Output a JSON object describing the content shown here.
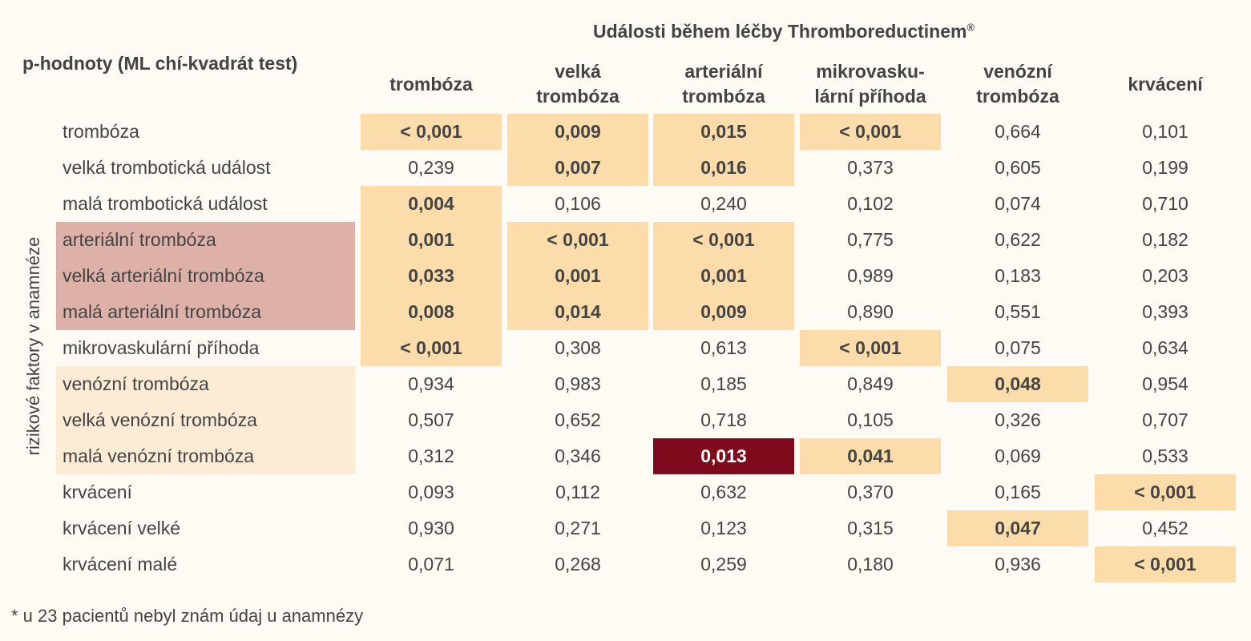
{
  "header": {
    "title": "Události během léčby Thromboreductinem",
    "title_mark": "®",
    "ptitle": "p-hodnoty (ML chí-kvadrát test)"
  },
  "side_label": "rizikové faktory v anamnéze",
  "columns": [
    "trombóza",
    "velká\ntrombóza",
    "arteriální\ntrombóza",
    "mikrovasku-\nlární příhoda",
    "venózní\ntrombóza",
    "krvácení"
  ],
  "rows": [
    {
      "label": "trombóza",
      "values": [
        "< 0,001",
        "0,009",
        "0,015",
        "< 0,001",
        "0,664",
        "0,101"
      ]
    },
    {
      "label": "velká trombotická událost",
      "values": [
        "0,239",
        "0,007",
        "0,016",
        "0,373",
        "0,605",
        "0,199"
      ]
    },
    {
      "label": "malá trombotická událost",
      "values": [
        "0,004",
        "0,106",
        "0,240",
        "0,102",
        "0,074",
        "0,710"
      ]
    },
    {
      "label": "arteriální trombóza",
      "values": [
        "0,001",
        "< 0,001",
        "< 0,001",
        "0,775",
        "0,622",
        "0,182"
      ]
    },
    {
      "label": "velká arteriální trombóza",
      "values": [
        "0,033",
        "0,001",
        "0,001",
        "0,989",
        "0,183",
        "0,203"
      ]
    },
    {
      "label": "malá arteriální trombóza",
      "values": [
        "0,008",
        "0,014",
        "0,009",
        "0,890",
        "0,551",
        "0,393"
      ]
    },
    {
      "label": "mikrovaskulární příhoda",
      "values": [
        "< 0,001",
        "0,308",
        "0,613",
        "< 0,001",
        "0,075",
        "0,634"
      ]
    },
    {
      "label": "venózní trombóza",
      "values": [
        "0,934",
        "0,983",
        "0,185",
        "0,849",
        "0,048",
        "0,954"
      ]
    },
    {
      "label": "velká venózní trombóza",
      "values": [
        "0,507",
        "0,652",
        "0,718",
        "0,105",
        "0,326",
        "0,707"
      ]
    },
    {
      "label": "malá venózní trombóza",
      "values": [
        "0,312",
        "0,346",
        "0,013",
        "0,041",
        "0,069",
        "0,533"
      ]
    },
    {
      "label": "krvácení",
      "values": [
        "0,093",
        "0,112",
        "0,632",
        "0,370",
        "0,165",
        "< 0,001"
      ]
    },
    {
      "label": "krvácení velké",
      "values": [
        "0,930",
        "0,271",
        "0,123",
        "0,315",
        "0,047",
        "0,452"
      ]
    },
    {
      "label": "krvácení malé",
      "values": [
        "0,071",
        "0,268",
        "0,259",
        "0,180",
        "0,936",
        "< 0,001"
      ]
    }
  ],
  "highlights": [
    [
      0,
      0
    ],
    [
      0,
      1
    ],
    [
      0,
      2
    ],
    [
      0,
      3
    ],
    [
      1,
      1
    ],
    [
      1,
      2
    ],
    [
      2,
      0
    ],
    [
      3,
      0
    ],
    [
      3,
      1
    ],
    [
      3,
      2
    ],
    [
      4,
      0
    ],
    [
      4,
      1
    ],
    [
      4,
      2
    ],
    [
      5,
      0
    ],
    [
      5,
      1
    ],
    [
      5,
      2
    ],
    [
      6,
      0
    ],
    [
      6,
      3
    ],
    [
      7,
      4
    ],
    [
      9,
      3
    ],
    [
      10,
      5
    ],
    [
      11,
      4
    ],
    [
      12,
      5
    ]
  ],
  "dark_highlights": [
    [
      9,
      2
    ]
  ],
  "colors": {
    "background": "#fdfbf4",
    "highlight": "#fbdcaa",
    "dark_highlight": "#7e0a1c",
    "arterial_label_band": "#ddb0a8",
    "venous_label_band": "#fcebd5"
  },
  "footnote": "* u 23 pacientů nebyl znám údaj u anamnézy"
}
